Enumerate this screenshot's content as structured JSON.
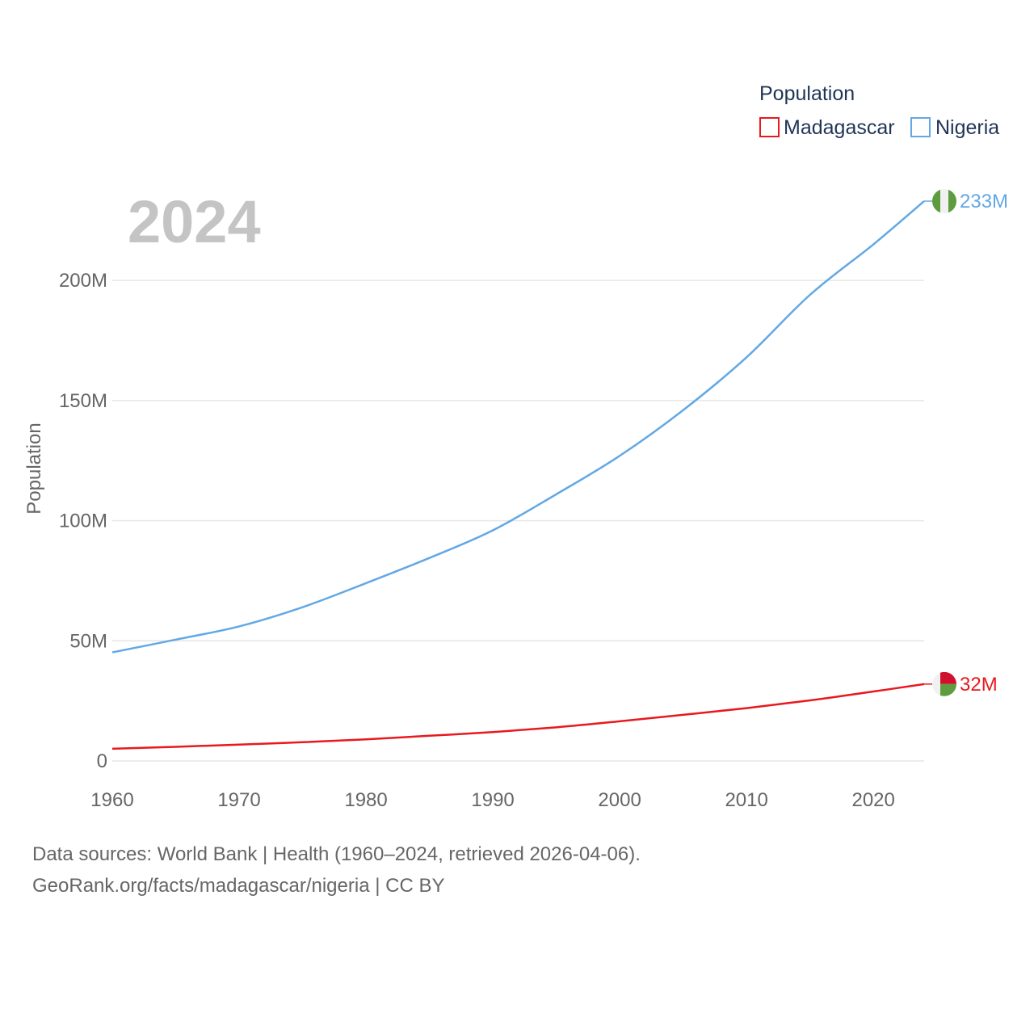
{
  "chart_data": {
    "type": "line",
    "title": "Population",
    "ylabel": "Population",
    "xlabel": "",
    "year_label": "2024",
    "xlim": [
      1960,
      2024
    ],
    "ylim": [
      0,
      233000000
    ],
    "x_ticks": [
      1960,
      1970,
      1980,
      1990,
      2000,
      2010,
      2020
    ],
    "x_tick_labels": [
      "1960",
      "1970",
      "1980",
      "1990",
      "2000",
      "2010",
      "2020"
    ],
    "y_ticks": [
      0,
      50000000,
      100000000,
      150000000,
      200000000
    ],
    "y_tick_labels": [
      "0",
      "50M",
      "100M",
      "150M",
      "200M"
    ],
    "grid": true,
    "legend": {
      "title": "Population",
      "position": "top-right",
      "entries": [
        "Madagascar",
        "Nigeria"
      ]
    },
    "x": [
      1960,
      1965,
      1970,
      1975,
      1980,
      1985,
      1990,
      1995,
      2000,
      2005,
      2010,
      2015,
      2020,
      2024
    ],
    "series": [
      {
        "name": "Madagascar",
        "color": "#e8191d",
        "end_label": "32M",
        "values": [
          5100000,
          5900000,
          6800000,
          7800000,
          9000000,
          10500000,
          12000000,
          14000000,
          16500000,
          19200000,
          22000000,
          25200000,
          28900000,
          32000000
        ]
      },
      {
        "name": "Nigeria",
        "color": "#62a8e5",
        "end_label": "233M",
        "values": [
          45200000,
          50500000,
          56000000,
          64000000,
          74000000,
          84500000,
          96000000,
          111000000,
          127000000,
          146000000,
          168000000,
          194000000,
          215000000,
          233000000
        ]
      }
    ]
  },
  "footer": {
    "line1": "Data sources: World Bank | Health (1960–2024, retrieved 2026-04-06).",
    "line2": "GeoRank.org/facts/madagascar/nigeria | CC BY"
  }
}
